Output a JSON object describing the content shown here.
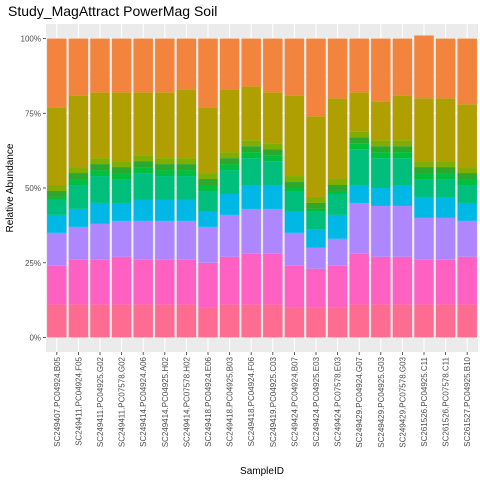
{
  "chart_data": {
    "type": "bar",
    "stacked": true,
    "normalized": true,
    "title": "Study_MagAttract PowerMag Soil",
    "xlabel": "SampleID",
    "ylabel": "Relative Abundance",
    "ylim": [
      0,
      1
    ],
    "yticks": [
      {
        "value": 0,
        "label": "0%"
      },
      {
        "value": 0.25,
        "label": "25%"
      },
      {
        "value": 0.5,
        "label": "50%"
      },
      {
        "value": 0.75,
        "label": "75%"
      },
      {
        "value": 1,
        "label": "100%"
      }
    ],
    "grid": true,
    "legend": "none",
    "categories": [
      "SC249407.PC04924.B05",
      "SC249411.PC04924.F05",
      "SC249411.PC04925.G02",
      "SC249411.PC07578.G02",
      "SC249414.PC04924.A06",
      "SC249414.PC04925.H02",
      "SC249414.PC07578.H02",
      "SC249418.PC04924.E06",
      "SC249418.PC04925.B03",
      "SC249418.PC04924.F06",
      "SC249419.PC04925.C03",
      "SC249424.PC04924.B07",
      "SC249424.PC04925.E03",
      "SC249424.PC07578.E03",
      "SC249429.PC04924.G07",
      "SC249429.PC04925.G03",
      "SC249429.PC07578.G03",
      "SC261526.PC04925.C11",
      "SC261526.PC07578.C11",
      "SC261527.PC04925.B10"
    ],
    "series": [
      {
        "color": "#FF6C91",
        "values": [
          0.11,
          0.11,
          0.11,
          0.11,
          0.11,
          0.11,
          0.11,
          0.1,
          0.11,
          0.11,
          0.11,
          0.1,
          0.1,
          0.1,
          0.11,
          0.11,
          0.11,
          0.11,
          0.11,
          0.11
        ]
      },
      {
        "color": "#FF61C3",
        "values": [
          0.13,
          0.15,
          0.15,
          0.16,
          0.15,
          0.15,
          0.15,
          0.15,
          0.16,
          0.17,
          0.17,
          0.14,
          0.13,
          0.14,
          0.17,
          0.16,
          0.16,
          0.15,
          0.15,
          0.16
        ]
      },
      {
        "color": "#AE87FF",
        "values": [
          0.11,
          0.11,
          0.12,
          0.12,
          0.13,
          0.13,
          0.13,
          0.12,
          0.14,
          0.15,
          0.15,
          0.11,
          0.07,
          0.09,
          0.17,
          0.17,
          0.17,
          0.14,
          0.14,
          0.12
        ]
      },
      {
        "color": "#00B8E5",
        "values": [
          0.06,
          0.06,
          0.07,
          0.06,
          0.07,
          0.07,
          0.07,
          0.05,
          0.07,
          0.08,
          0.08,
          0.07,
          0.06,
          0.08,
          0.06,
          0.06,
          0.07,
          0.07,
          0.07,
          0.06
        ]
      },
      {
        "color": "#00BF7D",
        "values": [
          0.05,
          0.08,
          0.09,
          0.08,
          0.09,
          0.08,
          0.08,
          0.07,
          0.08,
          0.09,
          0.08,
          0.07,
          0.06,
          0.07,
          0.12,
          0.1,
          0.09,
          0.06,
          0.06,
          0.06
        ]
      },
      {
        "color": "#00BE3E",
        "values": [
          0.01,
          0.02,
          0.02,
          0.02,
          0.02,
          0.02,
          0.02,
          0.02,
          0.02,
          0.02,
          0.02,
          0.01,
          0.01,
          0.01,
          0.02,
          0.02,
          0.02,
          0.02,
          0.02,
          0.02
        ]
      },
      {
        "color": "#2DA82D",
        "values": [
          0.02,
          0.02,
          0.02,
          0.02,
          0.02,
          0.02,
          0.02,
          0.02,
          0.02,
          0.02,
          0.02,
          0.02,
          0.02,
          0.02,
          0.02,
          0.02,
          0.02,
          0.02,
          0.02,
          0.02
        ]
      },
      {
        "color": "#7FAE00",
        "values": [
          0.02,
          0.02,
          0.02,
          0.02,
          0.02,
          0.02,
          0.02,
          0.02,
          0.02,
          0.02,
          0.02,
          0.02,
          0.02,
          0.02,
          0.02,
          0.02,
          0.02,
          0.02,
          0.02,
          0.02
        ]
      },
      {
        "color": "#B09F00",
        "values": [
          0.26,
          0.24,
          0.22,
          0.23,
          0.21,
          0.22,
          0.23,
          0.22,
          0.21,
          0.18,
          0.17,
          0.27,
          0.27,
          0.27,
          0.13,
          0.13,
          0.15,
          0.21,
          0.21,
          0.21
        ]
      },
      {
        "color": "#F2843E",
        "values": [
          0.23,
          0.19,
          0.18,
          0.18,
          0.18,
          0.18,
          0.17,
          0.23,
          0.17,
          0.16,
          0.18,
          0.19,
          0.26,
          0.2,
          0.18,
          0.21,
          0.19,
          0.21,
          0.2,
          0.22
        ]
      }
    ]
  }
}
